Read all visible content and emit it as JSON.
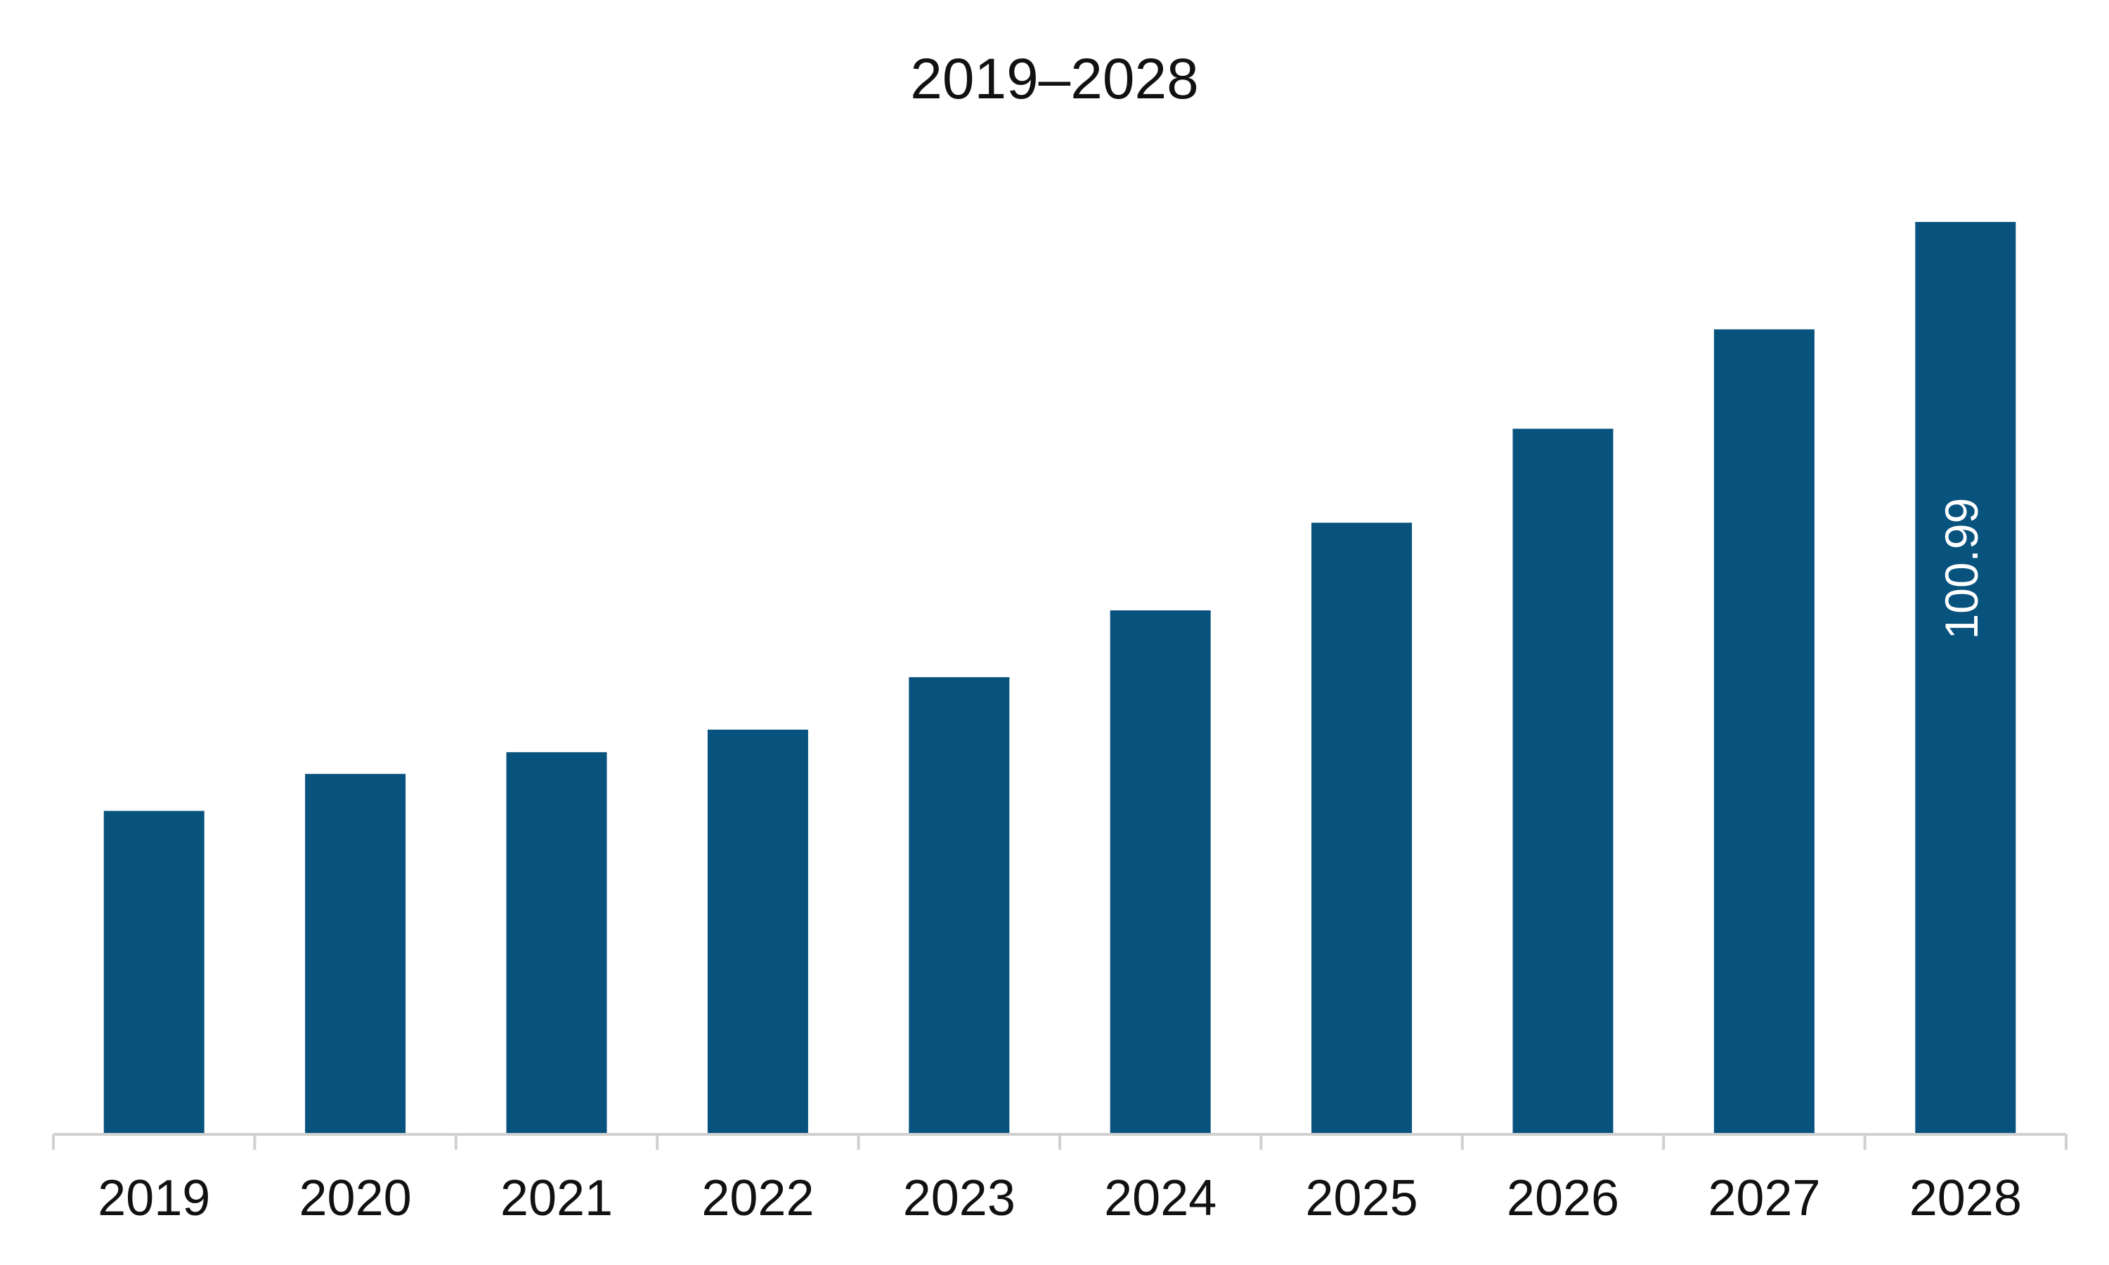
{
  "chart_data": {
    "type": "bar",
    "title": "2019–2028",
    "xlabel": "",
    "ylabel": "",
    "categories": [
      "2019",
      "2020",
      "2021",
      "2022",
      "2023",
      "2024",
      "2025",
      "2026",
      "2027",
      "2028"
    ],
    "values": [
      35.8,
      39.9,
      42.3,
      44.8,
      50.6,
      58.0,
      67.7,
      78.1,
      89.1,
      100.99
    ],
    "data_labels": [
      {
        "category": "2028",
        "text": "100.99",
        "orientation": "vertical"
      }
    ],
    "ylim": [
      0,
      100.99
    ],
    "grid": false,
    "legend": "none",
    "colors": {
      "bar": "#08527E",
      "axis": "#D0D0D0",
      "text": "#111111",
      "label_text": "#FFFFFF"
    }
  }
}
